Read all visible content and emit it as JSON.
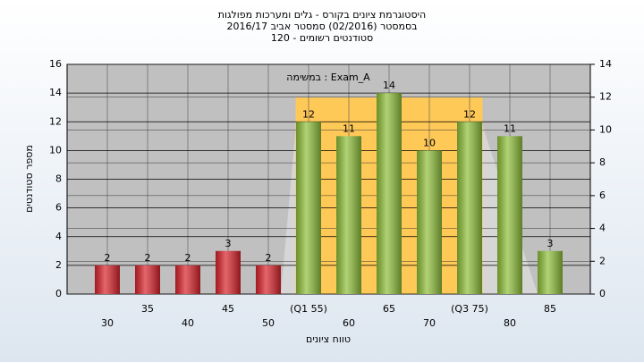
{
  "chart_data": {
    "type": "bar",
    "title": "היסטוגרמת ציונים בקורס - גלים ומערכות מפולגות",
    "subtitle": [
      "בסמסטר  (02/2016)  סמסטר אביב 2016/17",
      "סטודנטים רשומים - 120"
    ],
    "annotation": "במשימה : Exam_A",
    "y_label": "מספר סטודנטים",
    "x_label": "טווח ציונים",
    "categories": [
      "30",
      "35",
      "40",
      "45",
      "50",
      "(Q1 55)",
      "60",
      "65",
      "70",
      "(Q3 75)",
      "80",
      "85"
    ],
    "values": [
      2,
      2,
      2,
      3,
      2,
      12,
      11,
      14,
      10,
      12,
      11,
      3
    ],
    "colors": [
      "#d9232b",
      "#d9232b",
      "#d9232b",
      "#d9232b",
      "#d9232b",
      "#8fbf3a",
      "#8fbf3a",
      "#8fbf3a",
      "#8fbf3a",
      "#8fbf3a",
      "#8fbf3a",
      "#8fbf3a"
    ],
    "ylim": [
      0,
      16
    ],
    "yticks": [
      0,
      2,
      4,
      6,
      8,
      10,
      12,
      14,
      16
    ],
    "y2lim": [
      0,
      14
    ],
    "y2ticks": [
      0,
      2,
      4,
      6,
      8,
      10,
      12,
      14
    ],
    "grid": true
  }
}
